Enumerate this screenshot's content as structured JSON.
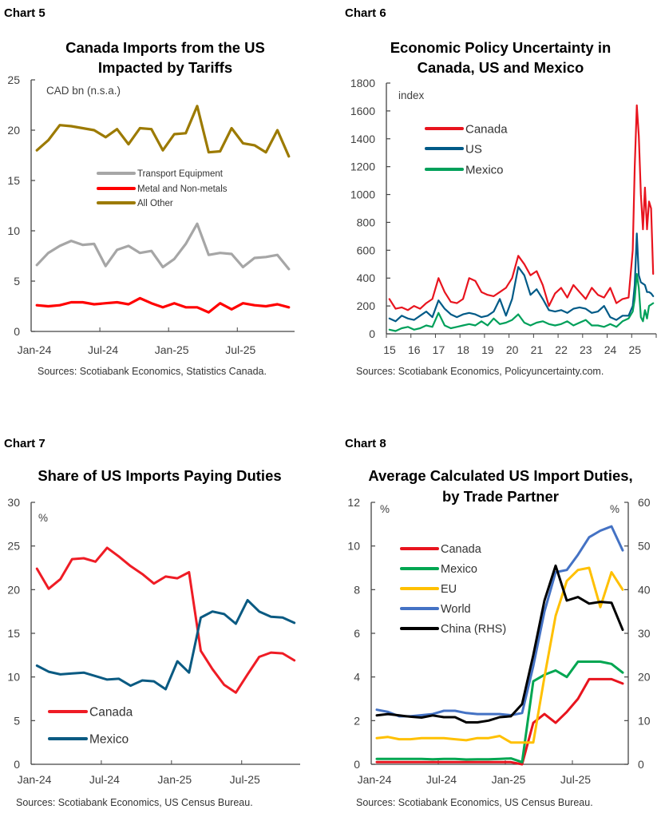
{
  "chart_data": [
    {
      "label": "Chart 5",
      "type": "line",
      "title": [
        "Canada Imports from the US",
        "Impacted by Tariffs"
      ],
      "unit_label": "CAD bn (n.s.a.)",
      "x": [
        "2024-01",
        "2024-02",
        "2024-03",
        "2024-04",
        "2024-05",
        "2024-06",
        "2024-07",
        "2024-08",
        "2024-09",
        "2024-10",
        "2024-11",
        "2024-12",
        "2025-01",
        "2025-02",
        "2025-03",
        "2025-04",
        "2025-05",
        "2025-06",
        "2025-07",
        "2025-08",
        "2025-09",
        "2025-10",
        "2025-11"
      ],
      "xticks": [
        {
          "label": "Jan-24",
          "at": "2024-01"
        },
        {
          "label": "Jul-24",
          "at": "2024-07"
        },
        {
          "label": "Jan-25",
          "at": "2025-01"
        },
        {
          "label": "Jul-25",
          "at": "2025-07"
        }
      ],
      "ylim": [
        0,
        25
      ],
      "yticks": [
        0,
        5,
        10,
        15,
        20,
        25
      ],
      "grid": false,
      "legend": "center",
      "series": [
        {
          "name": "Transport Equipment",
          "color": "#a6a6a6",
          "values": [
            6.6,
            7.8,
            8.5,
            9.0,
            8.6,
            8.7,
            6.5,
            8.1,
            8.5,
            7.8,
            8.0,
            6.4,
            7.2,
            8.7,
            10.7,
            7.6,
            7.8,
            7.7,
            6.4,
            7.3,
            7.4,
            7.6,
            6.2
          ]
        },
        {
          "name": "Metal and Non-metals",
          "color": "#ff0000",
          "values": [
            2.6,
            2.5,
            2.6,
            2.9,
            2.9,
            2.7,
            2.8,
            2.9,
            2.7,
            3.3,
            2.8,
            2.4,
            2.8,
            2.4,
            2.4,
            1.9,
            2.8,
            2.2,
            2.8,
            2.6,
            2.5,
            2.7,
            2.4
          ]
        },
        {
          "name": "All Other",
          "color": "#9c7a00",
          "values": [
            18.0,
            19.0,
            20.5,
            20.4,
            20.2,
            20.0,
            19.3,
            20.1,
            18.6,
            20.2,
            20.1,
            18.0,
            19.6,
            19.7,
            22.4,
            17.8,
            17.9,
            20.2,
            18.7,
            18.5,
            17.8,
            20.0,
            17.4
          ]
        }
      ],
      "source": "Sources: Scotiabank Economics, Statistics Canada."
    },
    {
      "label": "Chart 6",
      "type": "line",
      "title": [
        "Economic Policy Uncertainty in",
        "Canada, US and Mexico"
      ],
      "unit_label": "index",
      "x": [
        "2015-02",
        "2015-05",
        "2015-08",
        "2015-11",
        "2016-02",
        "2016-05",
        "2016-08",
        "2016-11",
        "2017-02",
        "2017-05",
        "2017-08",
        "2017-11",
        "2018-02",
        "2018-05",
        "2018-08",
        "2018-11",
        "2019-02",
        "2019-05",
        "2019-08",
        "2019-11",
        "2020-02",
        "2020-05",
        "2020-08",
        "2020-11",
        "2021-02",
        "2021-05",
        "2021-08",
        "2021-11",
        "2022-02",
        "2022-05",
        "2022-08",
        "2022-11",
        "2023-02",
        "2023-05",
        "2023-08",
        "2023-11",
        "2024-02",
        "2024-05",
        "2024-08",
        "2024-11",
        "2025-01",
        "2025-02",
        "2025-03",
        "2025-04",
        "2025-05",
        "2025-06",
        "2025-07",
        "2025-08",
        "2025-09",
        "2025-10",
        "2025-11"
      ],
      "xticks": [
        {
          "label": "15",
          "at": "2015-01"
        },
        {
          "label": "16",
          "at": "2016-01"
        },
        {
          "label": "17",
          "at": "2017-01"
        },
        {
          "label": "18",
          "at": "2018-01"
        },
        {
          "label": "19",
          "at": "2019-01"
        },
        {
          "label": "20",
          "at": "2020-01"
        },
        {
          "label": "21",
          "at": "2021-01"
        },
        {
          "label": "22",
          "at": "2022-01"
        },
        {
          "label": "23",
          "at": "2023-01"
        },
        {
          "label": "24",
          "at": "2024-01"
        },
        {
          "label": "25",
          "at": "2025-01"
        }
      ],
      "ylim": [
        0,
        1800
      ],
      "yticks": [
        0,
        200,
        400,
        600,
        800,
        1000,
        1200,
        1400,
        1600,
        1800
      ],
      "grid": false,
      "legend": "top-left",
      "series": [
        {
          "name": "Canada",
          "color": "#e8141e",
          "values": [
            250,
            180,
            190,
            170,
            200,
            180,
            220,
            250,
            400,
            300,
            230,
            220,
            250,
            400,
            380,
            300,
            280,
            270,
            300,
            330,
            400,
            560,
            500,
            420,
            450,
            350,
            200,
            290,
            330,
            260,
            350,
            300,
            250,
            330,
            280,
            260,
            330,
            220,
            250,
            260,
            600,
            1200,
            1640,
            1420,
            1000,
            750,
            1050,
            750,
            950,
            900,
            430
          ]
        },
        {
          "name": "US",
          "color": "#005a87",
          "values": [
            110,
            90,
            130,
            110,
            100,
            130,
            160,
            120,
            240,
            180,
            140,
            120,
            140,
            150,
            140,
            120,
            130,
            160,
            250,
            130,
            250,
            480,
            420,
            280,
            320,
            250,
            170,
            160,
            170,
            150,
            180,
            190,
            180,
            150,
            160,
            200,
            120,
            100,
            130,
            130,
            200,
            350,
            720,
            420,
            370,
            360,
            350,
            300,
            300,
            290,
            270
          ]
        },
        {
          "name": "Mexico",
          "color": "#00a05a",
          "values": [
            30,
            20,
            40,
            50,
            30,
            40,
            60,
            50,
            150,
            60,
            40,
            50,
            60,
            70,
            60,
            90,
            60,
            110,
            70,
            80,
            100,
            140,
            80,
            60,
            80,
            90,
            70,
            60,
            70,
            90,
            60,
            80,
            100,
            60,
            60,
            50,
            70,
            50,
            90,
            110,
            160,
            250,
            430,
            330,
            120,
            90,
            170,
            110,
            200,
            210,
            220
          ]
        }
      ],
      "source": "Sources: Scotiabank Economics, Policyuncertainty.com."
    },
    {
      "label": "Chart 7",
      "type": "line",
      "title": [
        "Share of US Imports Paying Duties"
      ],
      "unit_label": "%",
      "x": [
        "2024-01",
        "2024-02",
        "2024-03",
        "2024-04",
        "2024-05",
        "2024-06",
        "2024-07",
        "2024-08",
        "2024-09",
        "2024-10",
        "2024-11",
        "2024-12",
        "2025-01",
        "2025-02",
        "2025-03",
        "2025-04",
        "2025-05",
        "2025-06",
        "2025-07",
        "2025-08",
        "2025-09",
        "2025-10",
        "2025-11"
      ],
      "xticks": [
        {
          "label": "Jan-24",
          "at": "2024-01"
        },
        {
          "label": "Jul-24",
          "at": "2024-07"
        },
        {
          "label": "Jan-25",
          "at": "2025-01"
        },
        {
          "label": "Jul-25",
          "at": "2025-07"
        }
      ],
      "ylim": [
        0,
        30
      ],
      "yticks": [
        0,
        5,
        10,
        15,
        20,
        25,
        30
      ],
      "grid": false,
      "legend": "bottom-left",
      "series": [
        {
          "name": "Canada",
          "color": "#ef1c25",
          "values": [
            22.4,
            20.1,
            21.2,
            23.5,
            23.6,
            23.2,
            24.8,
            23.8,
            22.7,
            21.8,
            20.7,
            21.5,
            21.3,
            22.0,
            13.0,
            10.9,
            9.1,
            8.2,
            10.3,
            12.3,
            12.8,
            12.7,
            11.9
          ]
        },
        {
          "name": "Mexico",
          "color": "#0a5a82",
          "values": [
            11.3,
            10.6,
            10.3,
            10.4,
            10.5,
            10.1,
            9.7,
            9.8,
            9.0,
            9.6,
            9.5,
            8.6,
            11.8,
            10.5,
            16.8,
            17.5,
            17.2,
            16.1,
            18.8,
            17.5,
            16.9,
            16.8,
            16.2
          ]
        }
      ],
      "source": "Sources: Scotiabank Economics, US Census Bureau."
    },
    {
      "label": "Chart 8",
      "type": "line",
      "title": [
        "Average Calculated US Import Duties,",
        "by Trade Partner"
      ],
      "unit_label": "%",
      "unit_label_right": "%",
      "x": [
        "2024-01",
        "2024-02",
        "2024-03",
        "2024-04",
        "2024-05",
        "2024-06",
        "2024-07",
        "2024-08",
        "2024-09",
        "2024-10",
        "2024-11",
        "2024-12",
        "2025-01",
        "2025-02",
        "2025-03",
        "2025-04",
        "2025-05",
        "2025-06",
        "2025-07",
        "2025-08",
        "2025-09",
        "2025-10",
        "2025-11"
      ],
      "xticks": [
        {
          "label": "Jan-24",
          "at": "2024-01"
        },
        {
          "label": "Jul-24",
          "at": "2024-07"
        },
        {
          "label": "Jan-25",
          "at": "2025-01"
        },
        {
          "label": "Jul-25",
          "at": "2025-07"
        }
      ],
      "ylim": [
        0,
        12
      ],
      "yticks": [
        0,
        2,
        4,
        6,
        8,
        10,
        12
      ],
      "y2lim": [
        0,
        60
      ],
      "y2ticks": [
        0,
        10,
        20,
        30,
        40,
        50,
        60
      ],
      "grid": false,
      "legend": "top-left",
      "series": [
        {
          "name": "Canada",
          "color": "#e8141e",
          "axis": "left",
          "values": [
            0.1,
            0.1,
            0.1,
            0.1,
            0.1,
            0.1,
            0.1,
            0.1,
            0.1,
            0.1,
            0.1,
            0.1,
            0.1,
            0.0,
            1.9,
            2.3,
            1.9,
            2.4,
            3.0,
            3.9,
            3.9,
            3.9,
            3.7
          ]
        },
        {
          "name": "Mexico",
          "color": "#00a651",
          "axis": "left",
          "values": [
            0.25,
            0.25,
            0.25,
            0.25,
            0.25,
            0.23,
            0.25,
            0.25,
            0.22,
            0.23,
            0.23,
            0.25,
            0.27,
            0.1,
            3.8,
            4.1,
            4.3,
            4.0,
            4.7,
            4.7,
            4.7,
            4.6,
            4.2
          ]
        },
        {
          "name": "EU",
          "color": "#ffc000",
          "axis": "left",
          "values": [
            1.2,
            1.25,
            1.15,
            1.15,
            1.2,
            1.2,
            1.2,
            1.15,
            1.1,
            1.2,
            1.2,
            1.3,
            1.0,
            1.0,
            1.0,
            4.0,
            6.8,
            8.4,
            8.9,
            9.0,
            7.2,
            8.8,
            8.0
          ]
        },
        {
          "name": "World",
          "color": "#4472c4",
          "axis": "left",
          "values": [
            2.5,
            2.4,
            2.2,
            2.2,
            2.25,
            2.3,
            2.45,
            2.45,
            2.35,
            2.3,
            2.3,
            2.3,
            2.25,
            2.35,
            4.5,
            7.0,
            8.8,
            8.9,
            9.6,
            10.4,
            10.7,
            10.9,
            9.8
          ]
        },
        {
          "name": "China (RHS)",
          "color": "#000000",
          "axis": "right",
          "values": [
            11.2,
            11.5,
            11.2,
            10.9,
            10.7,
            11.2,
            10.8,
            10.8,
            9.6,
            9.6,
            10.0,
            10.8,
            11.0,
            13.8,
            25.0,
            37.5,
            45.5,
            37.5,
            38.3,
            36.8,
            37.2,
            37.0,
            30.8
          ]
        }
      ],
      "source": "Sources: Scotiabank Economics, US Census Bureau."
    }
  ]
}
